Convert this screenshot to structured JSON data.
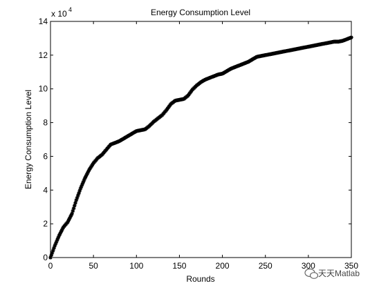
{
  "chart_data": {
    "type": "line",
    "title": "Energy Consumption Level",
    "xlabel": "Rounds",
    "ylabel": "Energy Consumption Level",
    "y_exponent_prefix": "x 10",
    "y_exponent_power": "4",
    "xlim": [
      0,
      350
    ],
    "ylim": [
      0,
      14
    ],
    "xticks": [
      0,
      50,
      100,
      150,
      200,
      250,
      300,
      350
    ],
    "yticks": [
      0,
      2,
      4,
      6,
      8,
      10,
      12,
      14
    ],
    "grid": false,
    "marker": "*",
    "series": [
      {
        "points": [
          [
            0,
            0
          ],
          [
            5,
            0.7
          ],
          [
            10,
            1.3
          ],
          [
            15,
            1.8
          ],
          [
            20,
            2.1
          ],
          [
            25,
            2.6
          ],
          [
            30,
            3.4
          ],
          [
            35,
            4.1
          ],
          [
            40,
            4.7
          ],
          [
            45,
            5.2
          ],
          [
            50,
            5.6
          ],
          [
            55,
            5.9
          ],
          [
            60,
            6.1
          ],
          [
            65,
            6.4
          ],
          [
            70,
            6.7
          ],
          [
            75,
            6.8
          ],
          [
            80,
            6.9
          ],
          [
            85,
            7.05
          ],
          [
            90,
            7.2
          ],
          [
            95,
            7.35
          ],
          [
            100,
            7.5
          ],
          [
            105,
            7.55
          ],
          [
            110,
            7.6
          ],
          [
            115,
            7.8
          ],
          [
            120,
            8.05
          ],
          [
            125,
            8.25
          ],
          [
            130,
            8.45
          ],
          [
            135,
            8.75
          ],
          [
            140,
            9.1
          ],
          [
            145,
            9.3
          ],
          [
            150,
            9.35
          ],
          [
            155,
            9.4
          ],
          [
            160,
            9.6
          ],
          [
            165,
            9.95
          ],
          [
            170,
            10.2
          ],
          [
            175,
            10.4
          ],
          [
            180,
            10.55
          ],
          [
            185,
            10.65
          ],
          [
            190,
            10.75
          ],
          [
            195,
            10.85
          ],
          [
            200,
            10.9
          ],
          [
            205,
            11.05
          ],
          [
            210,
            11.2
          ],
          [
            215,
            11.3
          ],
          [
            220,
            11.4
          ],
          [
            225,
            11.5
          ],
          [
            230,
            11.6
          ],
          [
            235,
            11.75
          ],
          [
            240,
            11.9
          ],
          [
            245,
            11.95
          ],
          [
            250,
            12.0
          ],
          [
            255,
            12.05
          ],
          [
            260,
            12.1
          ],
          [
            265,
            12.15
          ],
          [
            270,
            12.2
          ],
          [
            275,
            12.25
          ],
          [
            280,
            12.3
          ],
          [
            285,
            12.35
          ],
          [
            290,
            12.4
          ],
          [
            295,
            12.45
          ],
          [
            300,
            12.5
          ],
          [
            305,
            12.55
          ],
          [
            310,
            12.6
          ],
          [
            315,
            12.65
          ],
          [
            320,
            12.7
          ],
          [
            325,
            12.75
          ],
          [
            330,
            12.8
          ],
          [
            335,
            12.8
          ],
          [
            340,
            12.85
          ],
          [
            345,
            12.95
          ],
          [
            350,
            13.05
          ]
        ]
      }
    ]
  },
  "watermark": "天天Matlab",
  "watermark_icon": "wechat-icon"
}
